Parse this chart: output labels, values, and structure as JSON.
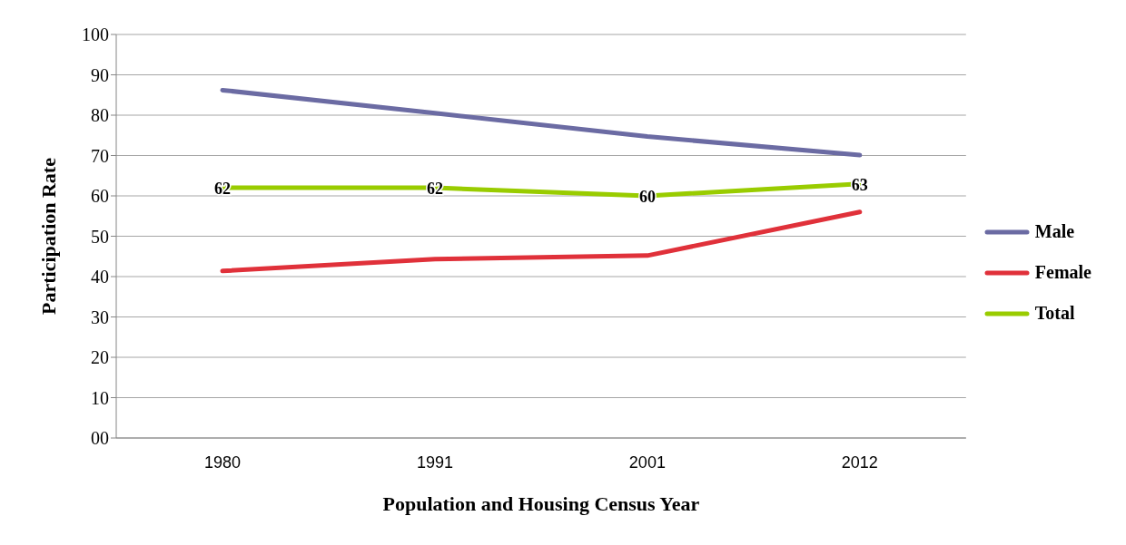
{
  "chart_data": {
    "type": "line",
    "xlabel": "Population and Housing Census Year",
    "ylabel": "Participation Rate",
    "categories": [
      "1980",
      "1991",
      "2001",
      "2012"
    ],
    "series": [
      {
        "name": "Male",
        "color": "#6b6ba3",
        "values": [
          86.2,
          80.5,
          74.7,
          70.1
        ]
      },
      {
        "name": "Female",
        "color": "#e0313a",
        "values": [
          41.4,
          44.3,
          45.2,
          56.0
        ]
      },
      {
        "name": "Total",
        "color": "#99cc00",
        "values": [
          62,
          62,
          60,
          63
        ],
        "value_labels": [
          "62",
          "62",
          "60",
          "63"
        ]
      }
    ],
    "ylim": [
      0,
      100
    ],
    "yticks": [
      {
        "value": 0,
        "label": "00"
      },
      10,
      20,
      30,
      40,
      50,
      60,
      70,
      80,
      90,
      100
    ],
    "grid": "y",
    "legend": "right",
    "marker": "none",
    "line_style": "solid"
  }
}
